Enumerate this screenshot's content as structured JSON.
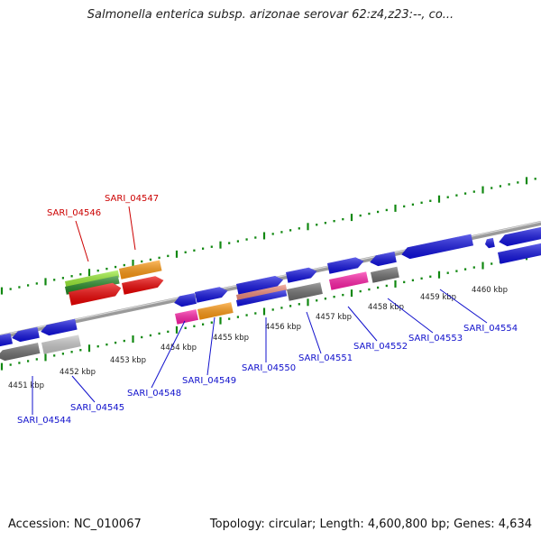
{
  "title": "Salmonella enterica subsp. arizonae serovar 62:z4,z23:--, co...",
  "footer": {
    "accession": "Accession: NC_010067",
    "topology": "Topology: circular; Length: 4,600,800 bp; Genes: 4,634"
  },
  "colors": {
    "forward_strand": "#1010e0",
    "gray_gene": "#6e6e6e",
    "light_gray_gene": "#c8c8c8",
    "magenta_gene": "#ff1fa8",
    "orange_gene": "#ff9910",
    "red_gene": "#ee0000",
    "light_green_gene": "#99ee33",
    "dark_green_gene": "#228822",
    "salmon_gene": "#ee8877",
    "tick_green": "#118811",
    "highlight_label": "#cc0000",
    "gene_label": "#1010cc"
  },
  "scale_labels": [
    "4451 kbp",
    "4452 kbp",
    "4453 kbp",
    "4454 kbp",
    "4455 kbp",
    "4456 kbp",
    "4457 kbp",
    "4458 kbp",
    "4459 kbp",
    "4460 kbp"
  ],
  "gene_labels": [
    {
      "text": "SARI_04544",
      "highlight": false
    },
    {
      "text": "SARI_04545",
      "highlight": false
    },
    {
      "text": "SARI_04546",
      "highlight": true
    },
    {
      "text": "SARI_04547",
      "highlight": true
    },
    {
      "text": "SARI_04548",
      "highlight": false
    },
    {
      "text": "SARI_04549",
      "highlight": false
    },
    {
      "text": "SARI_04550",
      "highlight": false
    },
    {
      "text": "SARI_04551",
      "highlight": false
    },
    {
      "text": "SARI_04552",
      "highlight": false
    },
    {
      "text": "SARI_04553",
      "highlight": false
    },
    {
      "text": "SARI_04554",
      "highlight": false
    }
  ]
}
